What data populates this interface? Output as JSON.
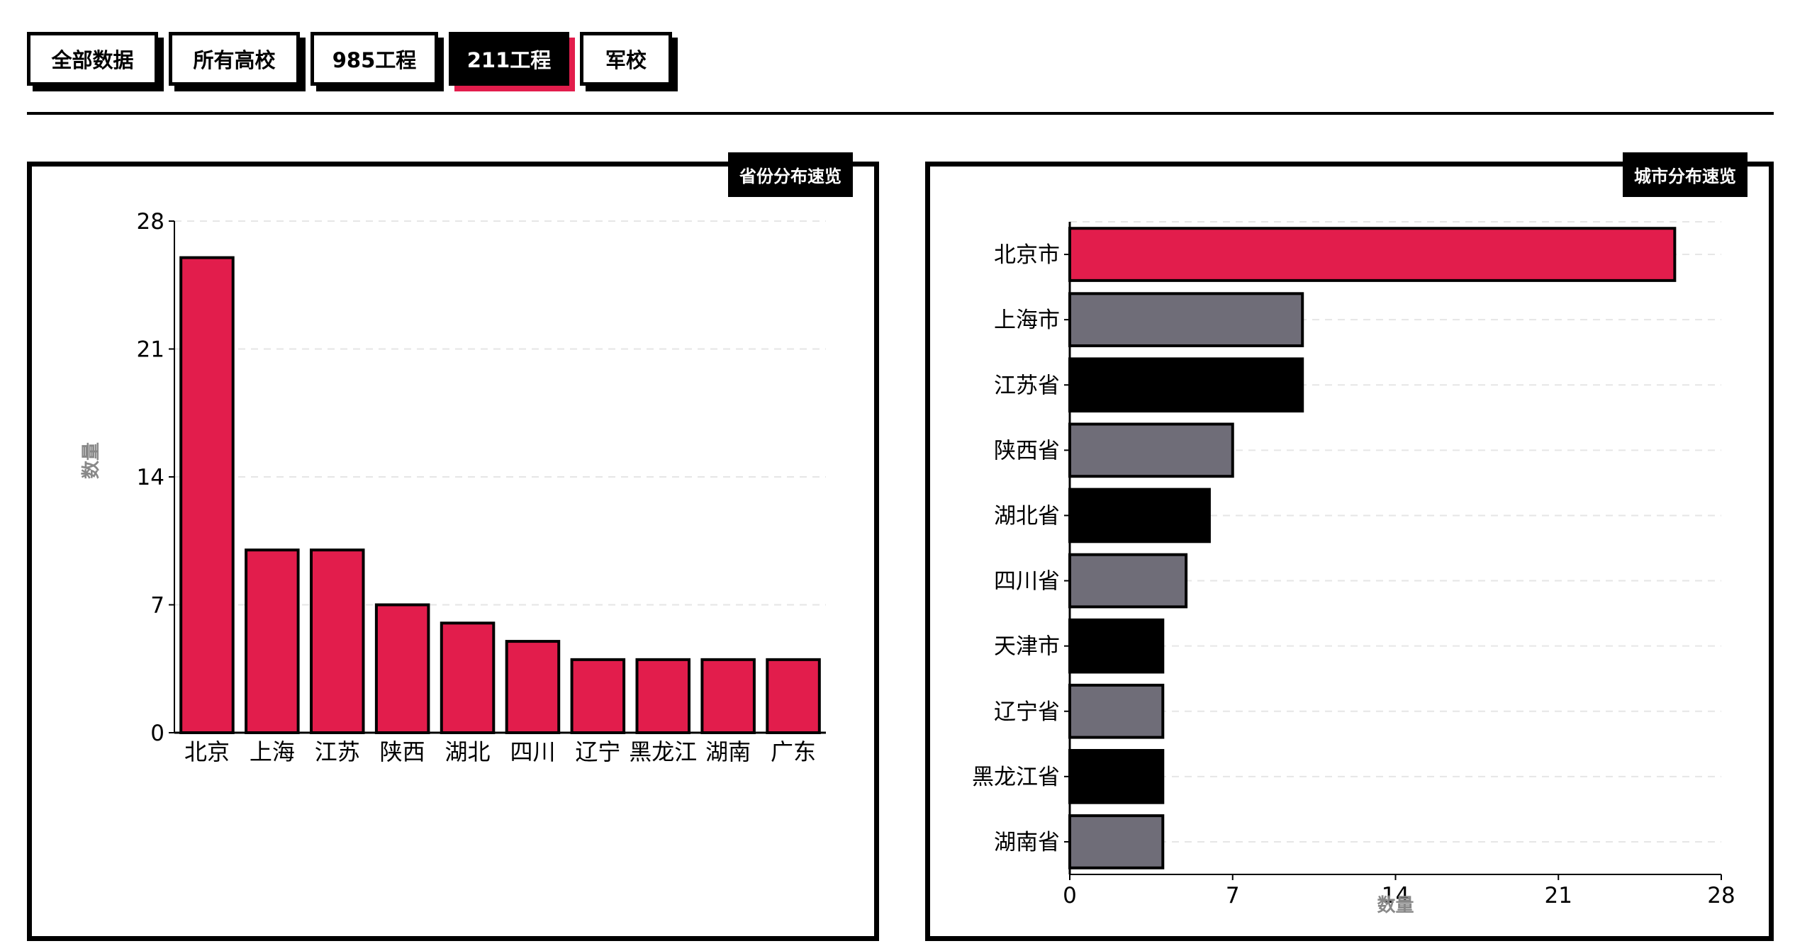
{
  "tabs": [
    {
      "label": "全部数据",
      "active": false
    },
    {
      "label": "所有高校",
      "active": false
    },
    {
      "label": "985工程",
      "active": false
    },
    {
      "label": "211工程",
      "active": true
    },
    {
      "label": "军校",
      "active": false
    }
  ],
  "colors": {
    "accent": "#e21d4c",
    "gray": "#6f6d78",
    "black": "#000000"
  },
  "panels": {
    "province": {
      "label": "省份分布速览"
    },
    "city": {
      "label": "城市分布速览"
    }
  },
  "chart_data": [
    {
      "type": "bar",
      "orientation": "vertical",
      "categories": [
        "北京",
        "上海",
        "江苏",
        "陕西",
        "湖北",
        "四川",
        "辽宁",
        "黑龙江",
        "湖南",
        "广东"
      ],
      "values": [
        26,
        10,
        10,
        7,
        6,
        5,
        4,
        4,
        4,
        4
      ],
      "ylabel": "数量",
      "xlabel": "",
      "ylim": [
        0,
        28
      ],
      "yticks": [
        0,
        7,
        14,
        21,
        28
      ],
      "grid": true,
      "bar_color": "#e21d4c"
    },
    {
      "type": "bar",
      "orientation": "horizontal",
      "categories": [
        "北京市",
        "上海市",
        "江苏省",
        "陕西省",
        "湖北省",
        "四川省",
        "天津市",
        "辽宁省",
        "黑龙江省",
        "湖南省"
      ],
      "values": [
        26,
        10,
        10,
        7,
        6,
        5,
        4,
        4,
        4,
        4
      ],
      "bar_colors": [
        "#e21d4c",
        "#6f6d78",
        "#000000",
        "#6f6d78",
        "#000000",
        "#6f6d78",
        "#000000",
        "#6f6d78",
        "#000000",
        "#6f6d78"
      ],
      "xlabel": "数量",
      "ylabel": "",
      "xlim": [
        0,
        28
      ],
      "xticks": [
        0,
        7,
        14,
        21,
        28
      ],
      "grid": true
    }
  ]
}
